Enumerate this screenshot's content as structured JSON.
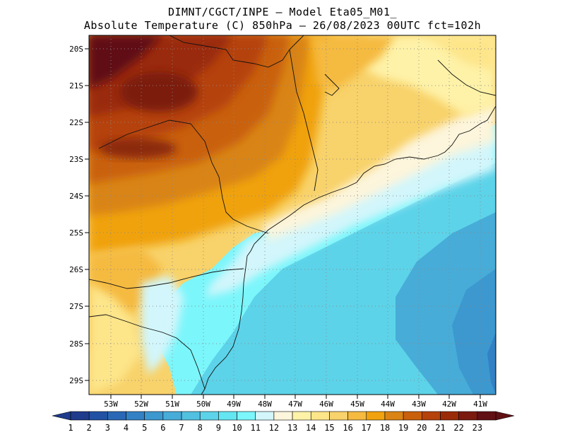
{
  "title": {
    "line1": "DIMNT/CGCT/INPE –  Model Eta05_M01_",
    "line2": "Absolute Temperature (C) 850hPa –  26/08/2023 00UTC fct=102h"
  },
  "axes": {
    "lat_labels": [
      "20S",
      "21S",
      "22S",
      "23S",
      "24S",
      "25S",
      "26S",
      "27S",
      "28S",
      "29S"
    ],
    "lon_labels": [
      "53W",
      "52W",
      "51W",
      "50W",
      "49W",
      "48W",
      "47W",
      "46W",
      "45W",
      "44W",
      "43W",
      "42W",
      "41W"
    ]
  },
  "colorbar": {
    "labels": [
      "1",
      "2",
      "3",
      "4",
      "5",
      "6",
      "7",
      "8",
      "9",
      "10",
      "11",
      "12",
      "13",
      "14",
      "15",
      "16",
      "17",
      "18",
      "19",
      "20",
      "21",
      "22",
      "23"
    ],
    "colors": [
      "#1f3b8c",
      "#2251a3",
      "#2a68b5",
      "#3381c4",
      "#3c98cf",
      "#47acd8",
      "#52c0e0",
      "#5cd3e9",
      "#63e6f2",
      "#7bf6fb",
      "#d2f6fb",
      "#fdf5dc",
      "#fef2a8",
      "#fde58a",
      "#f8d26a",
      "#f5ba3f",
      "#f0a20f",
      "#d98414",
      "#c9600b",
      "#b5420a",
      "#9a2b08",
      "#7b1a0f",
      "#611014"
    ]
  }
}
